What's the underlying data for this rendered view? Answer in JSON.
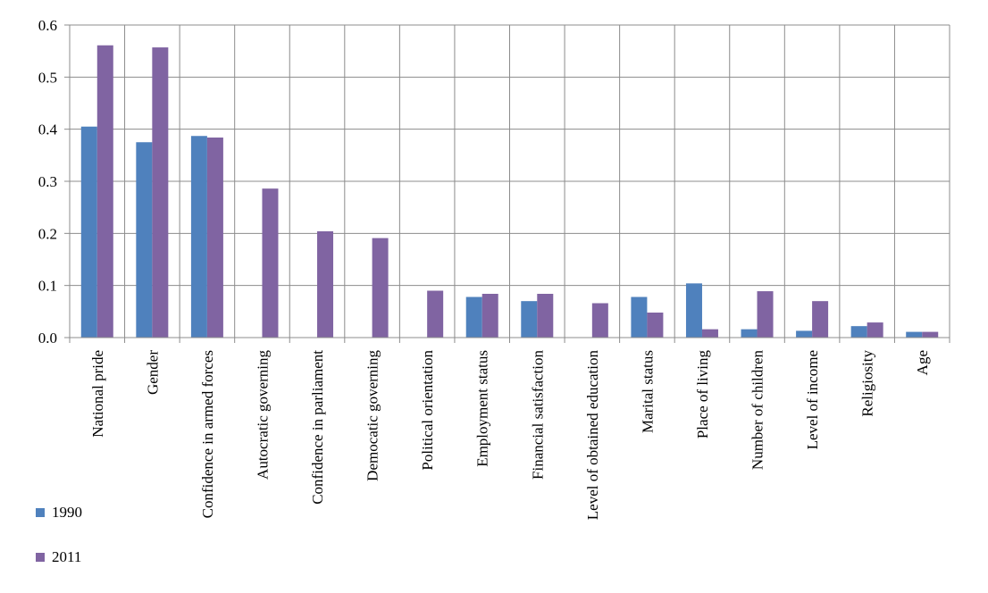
{
  "chart_data": {
    "type": "bar",
    "categories": [
      "National pride",
      "Gender",
      "Confidence in armed forces",
      "Autocratic governing",
      "Confidence in parliament",
      "Democatic governing",
      "Political orientation",
      "Employment status",
      "Financial satisfaction",
      "Level of obtained education",
      "Marital status",
      "Place of living",
      "Number of children",
      "Level of income",
      "Religiosity",
      "Age"
    ],
    "series": [
      {
        "name": "1990",
        "color": "#4F81BD",
        "values": [
          0.405,
          0.375,
          0.387,
          0,
          0,
          0,
          0,
          0.078,
          0.07,
          0,
          0.078,
          0.104,
          0.016,
          0.013,
          0.022,
          0.011
        ]
      },
      {
        "name": "2011",
        "color": "#8064A2",
        "values": [
          0.561,
          0.557,
          0.384,
          0.286,
          0.204,
          0.191,
          0.09,
          0.084,
          0.084,
          0.066,
          0.048,
          0.016,
          0.089,
          0.07,
          0.029,
          0.011
        ]
      }
    ],
    "ylim": [
      0,
      0.6
    ],
    "yticks": [
      "0.0",
      "0.1",
      "0.2",
      "0.3",
      "0.4",
      "0.5",
      "0.6"
    ],
    "grid": true,
    "legend_position": "bottom-left",
    "title": "",
    "xlabel": "",
    "ylabel": ""
  }
}
